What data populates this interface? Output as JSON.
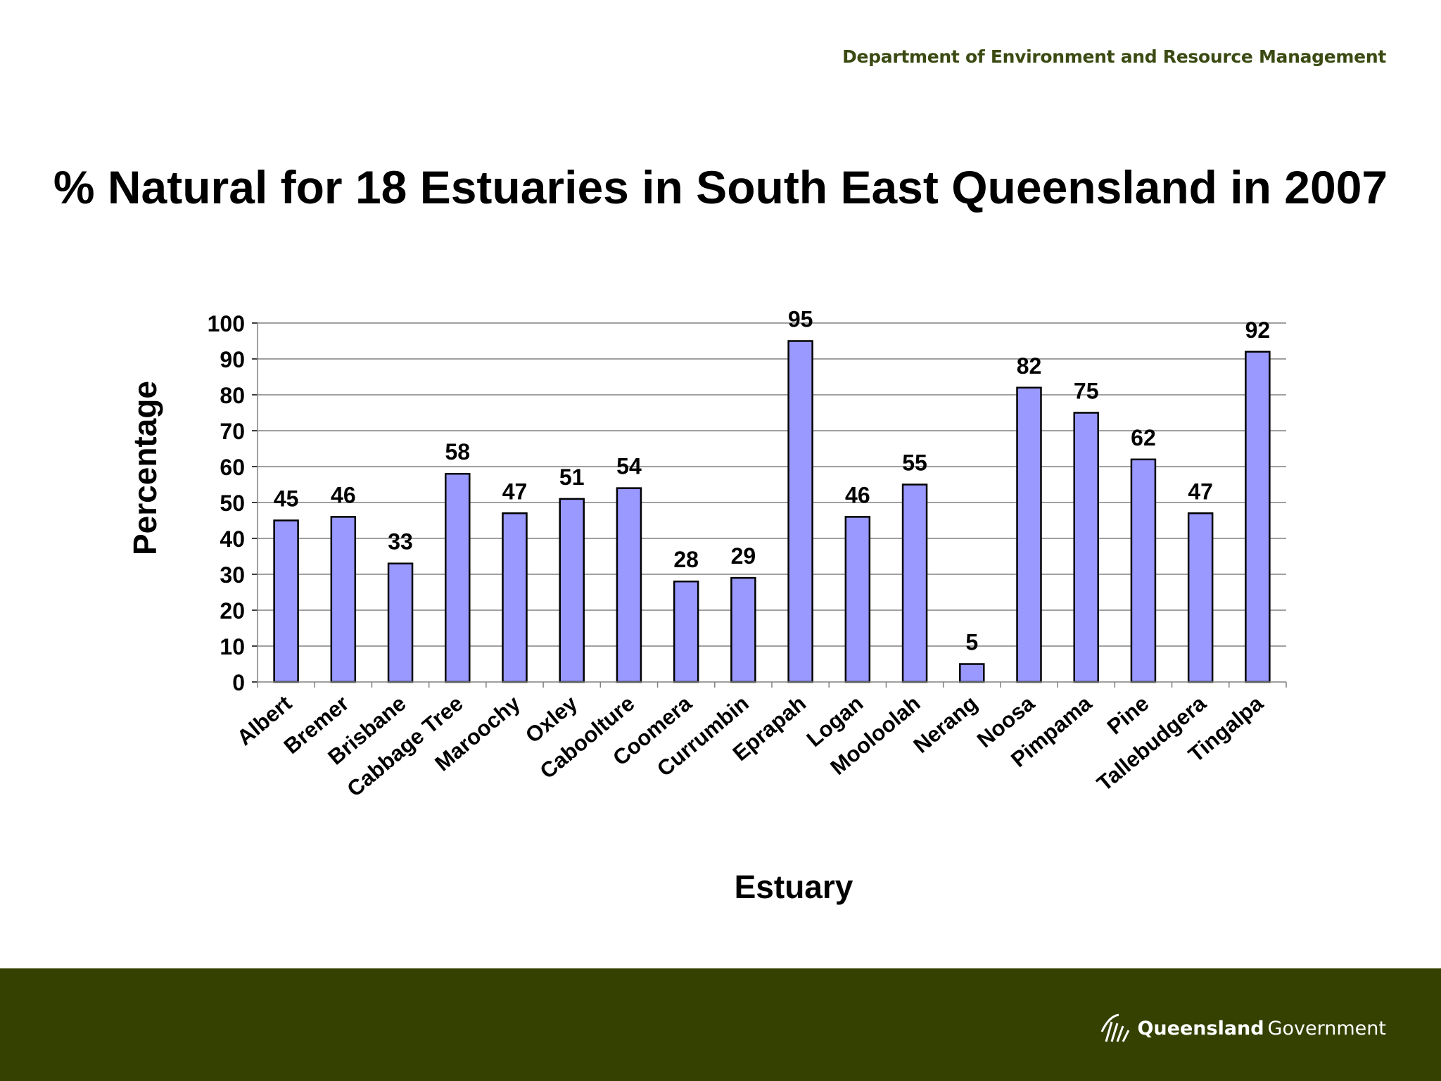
{
  "header": {
    "department": "Department of Environment and Resource Management"
  },
  "footer": {
    "brand_name": "Queensland",
    "brand_suffix": "Government"
  },
  "colors": {
    "bar_fill": "#9999ff",
    "bar_stroke": "#000000",
    "grid": "#808080",
    "footer_bg": "#344100",
    "header_text": "#3a4a12"
  },
  "chart_data": {
    "type": "bar",
    "title": "% Natural for 18 Estuaries in South East Queensland in 2007",
    "xlabel": "Estuary",
    "ylabel": "Percentage",
    "ylim": [
      0,
      100
    ],
    "yticks": [
      "0",
      "10",
      "20",
      "30",
      "40",
      "50",
      "60",
      "70",
      "80",
      "90",
      "100"
    ],
    "grid": true,
    "legend": "none",
    "categories": [
      "Albert",
      "Bremer",
      "Brisbane",
      "Cabbage Tree",
      "Maroochy",
      "Oxley",
      "Caboolture",
      "Coomera",
      "Currumbin",
      "Eprapah",
      "Logan",
      "Mooloolah",
      "Nerang",
      "Noosa",
      "Pimpama",
      "Pine",
      "Tallebudgera",
      "Tingalpa"
    ],
    "values": [
      45,
      46,
      33,
      58,
      47,
      51,
      54,
      28,
      29,
      95,
      46,
      55,
      5,
      82,
      75,
      62,
      47,
      92
    ]
  }
}
